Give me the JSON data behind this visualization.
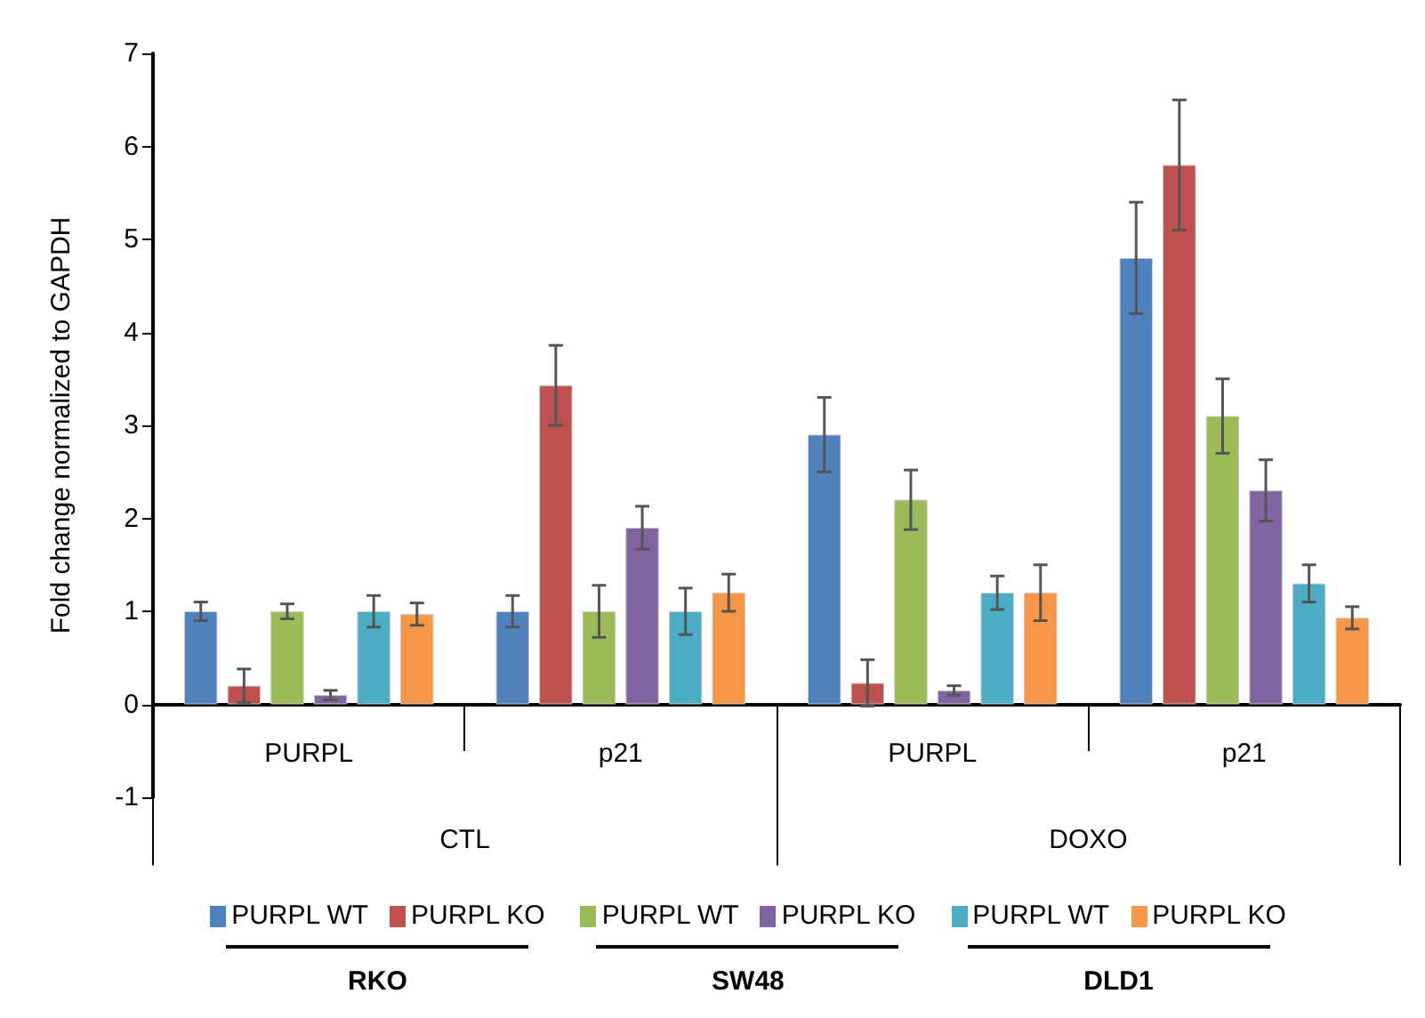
{
  "chart_data": {
    "type": "bar",
    "ylabel": "Fold change normalized to GAPDH",
    "categories": [
      "PURPL",
      "p21",
      "PURPL",
      "p21"
    ],
    "series": [
      {
        "name": "PURPL WT",
        "color": "#4f81bd",
        "values": [
          1.0,
          1.0,
          2.9,
          4.8
        ],
        "errors": [
          0.1,
          0.17,
          0.4,
          0.6
        ]
      },
      {
        "name": "PURPL KO",
        "color": "#c0504d",
        "values": [
          0.2,
          3.43,
          0.23,
          5.8
        ],
        "errors": [
          0.18,
          0.43,
          0.25,
          0.7
        ]
      },
      {
        "name": "PURPL WT",
        "color": "#9bbb59",
        "values": [
          1.0,
          1.0,
          2.2,
          3.1
        ],
        "errors": [
          0.08,
          0.28,
          0.32,
          0.4
        ]
      },
      {
        "name": "PURPL KO",
        "color": "#8064a2",
        "values": [
          0.1,
          1.9,
          0.15,
          2.3
        ],
        "errors": [
          0.05,
          0.23,
          0.05,
          0.33
        ]
      },
      {
        "name": "PURPL WT",
        "color": "#4bacc6",
        "values": [
          1.0,
          1.0,
          1.2,
          1.3
        ],
        "errors": [
          0.17,
          0.25,
          0.18,
          0.2
        ]
      },
      {
        "name": "PURPL KO",
        "color": "#f79646",
        "values": [
          0.97,
          1.2,
          1.2,
          0.93
        ],
        "errors": [
          0.12,
          0.2,
          0.3,
          0.12
        ]
      }
    ],
    "ylim": [
      -1,
      7
    ],
    "yticks": [
      -1,
      0,
      1,
      2,
      3,
      4,
      5,
      6,
      7
    ],
    "grid": false,
    "legend": "bottom",
    "annotations": [
      "CTL",
      "DOXO",
      "RKO",
      "SW48",
      "DLD1"
    ]
  }
}
